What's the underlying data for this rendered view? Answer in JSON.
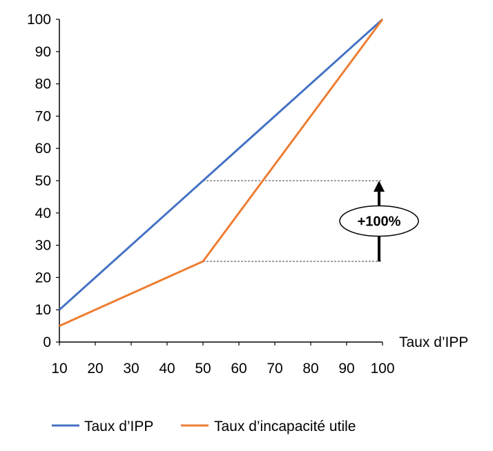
{
  "chart_data": {
    "type": "line",
    "title": "",
    "xlabel": "Taux d’IPP",
    "ylabel": "",
    "xlim": [
      10,
      100
    ],
    "ylim": [
      0,
      100
    ],
    "x_ticks": [
      10,
      20,
      30,
      40,
      50,
      60,
      70,
      80,
      90,
      100
    ],
    "y_ticks": [
      0,
      10,
      20,
      30,
      40,
      50,
      60,
      70,
      80,
      90,
      100
    ],
    "grid": false,
    "legend_position": "bottom",
    "series": [
      {
        "name": "Taux d’IPP",
        "color": "#4472C4",
        "x": [
          10,
          100
        ],
        "y": [
          10,
          100
        ]
      },
      {
        "name": "Taux d’incapacité utile",
        "color": "#ED7D31",
        "x": [
          10,
          50,
          100
        ],
        "y": [
          5,
          25,
          100
        ]
      }
    ],
    "annotation": {
      "label": "+100%",
      "x_from": 50,
      "x_to": 100,
      "y_from": 25,
      "y_to": 50
    }
  }
}
